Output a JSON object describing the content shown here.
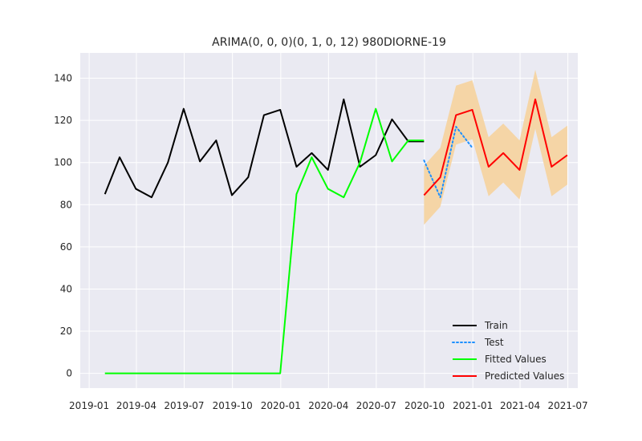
{
  "chart_data": {
    "type": "line",
    "title": "ARIMA(0, 0, 0)(0, 1, 0, 12) 980DIORNE-19",
    "xlabel": "",
    "ylabel": "",
    "x_ticks": [
      "2019-01",
      "2019-04",
      "2019-07",
      "2019-10",
      "2020-01",
      "2020-04",
      "2020-07",
      "2020-10",
      "2021-01",
      "2021-04",
      "2021-07"
    ],
    "y_ticks": [
      0,
      20,
      40,
      60,
      80,
      100,
      120,
      140
    ],
    "xlim": [
      "2018-12-15",
      "2021-07-20"
    ],
    "ylim": [
      -7,
      152
    ],
    "grid": true,
    "legend_position": "lower-right",
    "colors": {
      "plot_background": "#eaeaf2",
      "grid": "#ffffff",
      "Train": "#000000",
      "Test": "#1e90ff",
      "Fitted Values": "#00ff00",
      "Predicted Values": "#ff0000",
      "confidence_band": "#f5d5a6"
    },
    "series": [
      {
        "name": "Train",
        "style": "solid",
        "x": [
          "2019-01-31",
          "2019-02-28",
          "2019-03-31",
          "2019-04-30",
          "2019-05-31",
          "2019-06-30",
          "2019-07-31",
          "2019-08-31",
          "2019-09-30",
          "2019-10-31",
          "2019-11-30",
          "2019-12-31",
          "2020-01-31",
          "2020-02-29",
          "2020-03-31",
          "2020-04-30",
          "2020-05-31",
          "2020-06-30",
          "2020-07-31",
          "2020-08-31",
          "2020-09-30"
        ],
        "values": [
          85,
          102.5,
          87.5,
          83.5,
          100,
          125.5,
          100.5,
          110.5,
          84.5,
          93,
          122.5,
          125,
          98,
          104.5,
          96.5,
          130,
          98,
          103.5,
          120.5,
          110,
          110
        ]
      },
      {
        "name": "Test",
        "style": "dotted",
        "x": [
          "2020-09-30",
          "2020-10-31",
          "2020-11-30",
          "2020-12-31",
          "2021-01-31"
        ],
        "values": [
          101,
          83.5,
          117,
          107,
          null
        ]
      },
      {
        "name": "Fitted Values",
        "style": "solid",
        "x": [
          "2019-01-31",
          "2019-02-28",
          "2019-03-31",
          "2019-04-30",
          "2019-05-31",
          "2019-06-30",
          "2019-07-31",
          "2019-08-31",
          "2019-09-30",
          "2019-10-31",
          "2019-11-30",
          "2019-12-31",
          "2020-01-31",
          "2020-02-29",
          "2020-03-31",
          "2020-04-30",
          "2020-05-31",
          "2020-06-30",
          "2020-07-31",
          "2020-08-31",
          "2020-09-30"
        ],
        "values": [
          0,
          0,
          0,
          0,
          0,
          0,
          0,
          0,
          0,
          0,
          0,
          0,
          85,
          102.5,
          87.5,
          83.5,
          100,
          125.5,
          100.5,
          110.5,
          110.5
        ]
      },
      {
        "name": "Predicted Values",
        "style": "solid",
        "x": [
          "2020-09-30",
          "2020-10-31",
          "2020-11-30",
          "2020-12-31",
          "2021-01-31",
          "2021-02-28",
          "2021-03-31",
          "2021-04-30",
          "2021-05-31",
          "2021-06-30"
        ],
        "values": [
          84.5,
          93,
          122.5,
          125,
          98,
          104.5,
          96.5,
          130,
          98,
          103.5
        ],
        "lower": [
          70.5,
          79,
          108.5,
          111,
          84,
          90.5,
          82.5,
          116,
          84,
          89.5
        ],
        "upper": [
          98.5,
          107,
          136.5,
          139,
          112,
          118.5,
          110.5,
          144,
          112,
          117.5
        ]
      }
    ]
  }
}
